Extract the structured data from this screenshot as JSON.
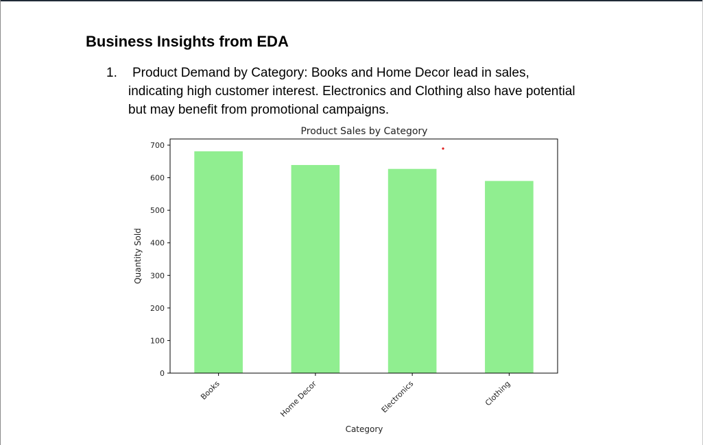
{
  "document": {
    "title": "Business Insights from EDA",
    "insights": [
      {
        "number": "1.",
        "lines": [
          "Product Demand by Category: Books and Home Decor lead in sales,",
          "indicating high customer interest. Electronics and Clothing also have potential",
          "but may benefit from promotional campaigns."
        ]
      }
    ]
  },
  "chart_data": {
    "type": "bar",
    "title": "Product Sales by Category",
    "xlabel": "Category",
    "ylabel": "Quantity Sold",
    "categories": [
      "Books",
      "Home Decor",
      "Electronics",
      "Clothing"
    ],
    "values": [
      681,
      639,
      627,
      590
    ],
    "ylim": [
      0,
      700
    ],
    "yticks": [
      0,
      100,
      200,
      300,
      400,
      500,
      600,
      700
    ],
    "grid": false,
    "bar_color": "#90ee90",
    "tick_label_rotation": -45
  }
}
